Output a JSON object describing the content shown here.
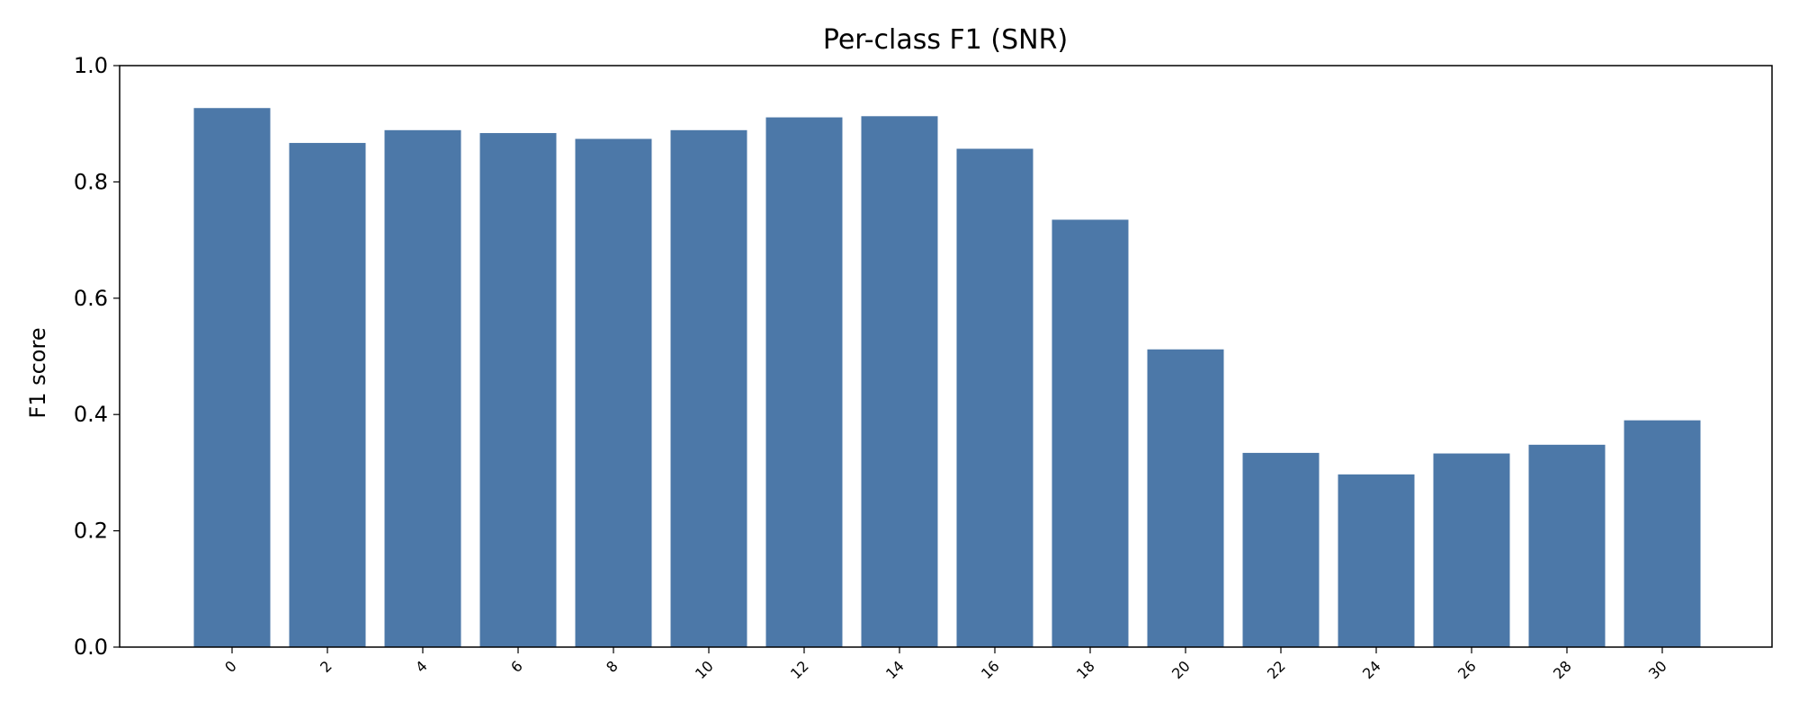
{
  "chart_data": {
    "type": "bar",
    "title": "Per-class F1 (SNR)",
    "xlabel": "",
    "ylabel": "F1 score",
    "ylim": [
      0,
      1.0
    ],
    "yticks": [
      "0.0",
      "0.2",
      "0.4",
      "0.6",
      "0.8",
      "1.0"
    ],
    "grid": false,
    "categories": [
      "0",
      "2",
      "4",
      "6",
      "8",
      "10",
      "12",
      "14",
      "16",
      "18",
      "20",
      "22",
      "24",
      "26",
      "28",
      "30"
    ],
    "values": [
      0.927,
      0.867,
      0.889,
      0.884,
      0.874,
      0.889,
      0.911,
      0.913,
      0.857,
      0.735,
      0.512,
      0.334,
      0.297,
      0.333,
      0.348,
      0.39
    ],
    "bar_color": "#4c78a8"
  }
}
